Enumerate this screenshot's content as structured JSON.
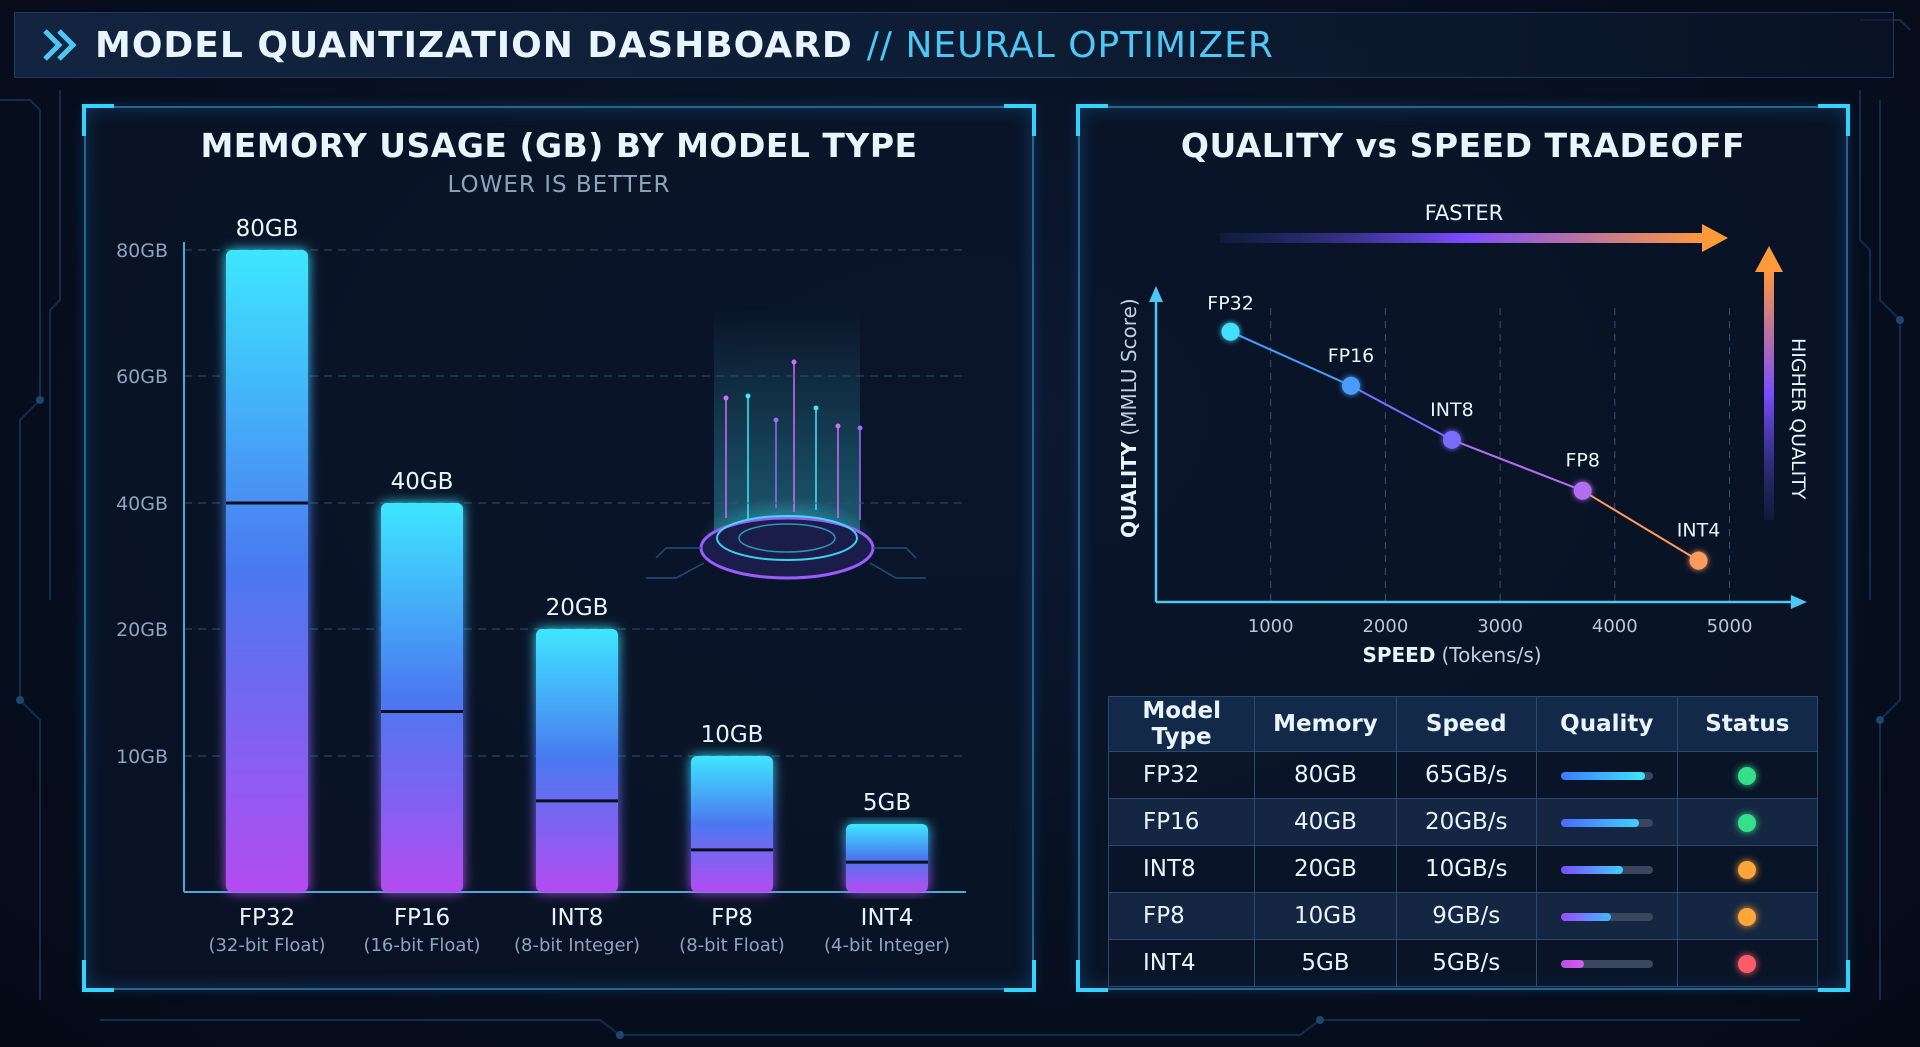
{
  "header": {
    "title": "MODEL QUANTIZATION DASHBOARD",
    "subtitle": "// NEURAL OPTIMIZER"
  },
  "memory_panel": {
    "title": "MEMORY USAGE (GB) BY MODEL TYPE",
    "subtitle": "LOWER IS BETTER"
  },
  "tradeoff_panel": {
    "title": "QUALITY vs SPEED TRADEOFF",
    "faster_label": "FASTER",
    "higher_quality_label": "HIGHER QUALITY",
    "x_label_bold": "SPEED",
    "x_label_unit": "(Tokens/s)",
    "y_label_bold": "QUALITY",
    "y_label_unit": "(MMLU Score)"
  },
  "table": {
    "headers": [
      "Model Type",
      "Memory",
      "Speed",
      "Quality",
      "Status"
    ],
    "rows": [
      {
        "model": "FP32",
        "memory": "80GB",
        "speed": "65GB/s",
        "quality": 0.92,
        "status": "#34e08a"
      },
      {
        "model": "FP16",
        "memory": "40GB",
        "speed": "20GB/s",
        "quality": 0.85,
        "status": "#34e08a"
      },
      {
        "model": "INT8",
        "memory": "20GB",
        "speed": "10GB/s",
        "quality": 0.68,
        "status": "#ffa53a"
      },
      {
        "model": "FP8",
        "memory": "10GB",
        "speed": "9GB/s",
        "quality": 0.55,
        "status": "#ffa53a"
      },
      {
        "model": "INT4",
        "memory": "5GB",
        "speed": "5GB/s",
        "quality": 0.25,
        "status": "#ff5c6a"
      }
    ]
  },
  "chart_data": [
    {
      "type": "bar",
      "title": "MEMORY USAGE (GB) BY MODEL TYPE",
      "subtitle": "LOWER IS BETTER",
      "categories": [
        "FP32",
        "FP16",
        "INT8",
        "FP8",
        "INT4"
      ],
      "category_sublabels": [
        "(32-bit Float)",
        "(16-bit Float)",
        "(8-bit Integer)",
        "(8-bit Float)",
        "(4-bit Integer)"
      ],
      "values": [
        80,
        40,
        20,
        10,
        5
      ],
      "value_labels": [
        "80GB",
        "40GB",
        "20GB",
        "10GB",
        "5GB"
      ],
      "marker_values": [
        40,
        13.5,
        6.7,
        3.1,
        2.2
      ],
      "y_ticks": [
        10,
        20,
        40,
        60,
        80
      ],
      "y_tick_labels": [
        "10GB",
        "20GB",
        "40GB",
        "60GB",
        "80GB"
      ],
      "ylim": [
        0,
        80
      ],
      "grid": true
    },
    {
      "type": "line",
      "title": "QUALITY vs SPEED TRADEOFF",
      "xlabel": "SPEED (Tokens/s)",
      "ylabel": "QUALITY (MMLU Score)",
      "x_ticks": [
        1000,
        2000,
        3000,
        4000,
        5000
      ],
      "xlim": [
        0,
        5500
      ],
      "ylim": [
        0,
        100
      ],
      "points": [
        {
          "label": "FP32",
          "x": 650,
          "y": 85,
          "color": "#3fe0ff"
        },
        {
          "label": "FP16",
          "x": 1700,
          "y": 68,
          "color": "#4a9bff"
        },
        {
          "label": "INT8",
          "x": 2580,
          "y": 51,
          "color": "#7a6cff"
        },
        {
          "label": "FP8",
          "x": 3720,
          "y": 35,
          "color": "#b06ef0"
        },
        {
          "label": "INT4",
          "x": 4730,
          "y": 13,
          "color": "#ff9a5a"
        }
      ],
      "grid": true
    }
  ]
}
